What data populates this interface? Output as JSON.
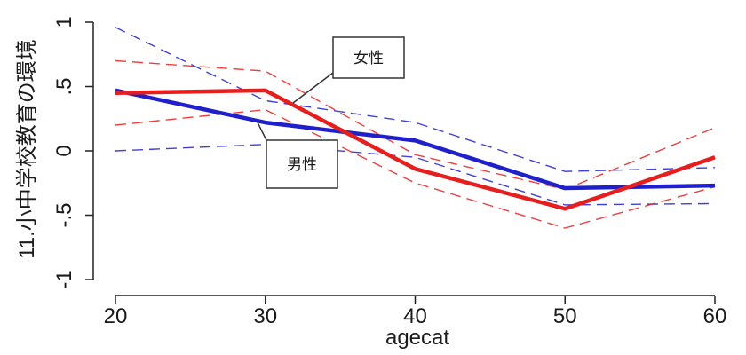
{
  "chart_data": {
    "type": "line",
    "title": "",
    "xlabel": "agecat",
    "ylabel": "11.小中学校教育の環境",
    "x": [
      20,
      30,
      40,
      50,
      60
    ],
    "xlim": [
      20,
      60
    ],
    "ylim": [
      -1,
      1
    ],
    "x_ticks": [
      20,
      30,
      40,
      50,
      60
    ],
    "x_tick_labels": [
      "20",
      "30",
      "40",
      "50",
      "60"
    ],
    "y_ticks": [
      1,
      0.5,
      0,
      -0.5,
      -1
    ],
    "y_tick_labels": [
      "1",
      ".5",
      "0",
      "-.5",
      "-1"
    ],
    "grid": false,
    "series": [
      {
        "name": "男性",
        "color": "#1f1fcc",
        "values": [
          0.47,
          0.22,
          0.08,
          -0.29,
          -0.27
        ],
        "ci_lower": [
          0.0,
          0.05,
          -0.05,
          -0.42,
          -0.41
        ],
        "ci_upper": [
          0.96,
          0.39,
          0.22,
          -0.16,
          -0.13
        ]
      },
      {
        "name": "女性",
        "color": "#e61e1e",
        "values": [
          0.45,
          0.47,
          -0.14,
          -0.45,
          -0.05
        ],
        "ci_lower": [
          0.2,
          0.32,
          -0.25,
          -0.6,
          -0.28
        ],
        "ci_upper": [
          0.7,
          0.62,
          -0.03,
          -0.3,
          0.18
        ]
      }
    ],
    "annotations": [
      {
        "text": "女性",
        "target_series": "女性"
      },
      {
        "text": "男性",
        "target_series": "男性"
      }
    ]
  }
}
